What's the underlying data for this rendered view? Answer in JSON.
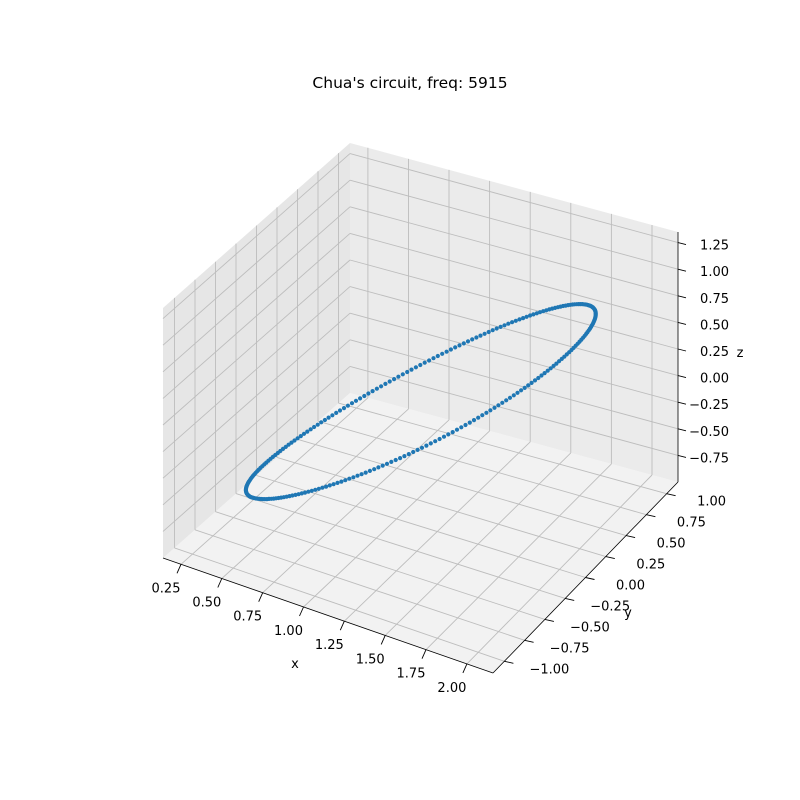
{
  "chart_data": {
    "type": "scatter",
    "projection": "3d",
    "title": "Chua's circuit, freq: 5915",
    "xlabel": "x",
    "ylabel": "y",
    "zlabel": "z",
    "grid": true,
    "xticks": [
      "0.25",
      "0.50",
      "0.75",
      "1.00",
      "1.25",
      "1.50",
      "1.75",
      "2.00"
    ],
    "yticks": [
      "−1.00",
      "−0.75",
      "−0.50",
      "−0.25",
      "0.00",
      "0.25",
      "0.50",
      "0.75",
      "1.00"
    ],
    "zticks": [
      "−0.75",
      "−0.50",
      "−0.25",
      "0.00",
      "0.25",
      "0.50",
      "0.75",
      "1.00",
      "1.25"
    ],
    "xlim": [
      0.14,
      2.16
    ],
    "ylim": [
      -1.14,
      1.14
    ],
    "zlim": [
      -1.0,
      1.35
    ],
    "series": [
      {
        "color": "#1f77b4",
        "marker": "point",
        "point_count": 250,
        "orbit": {
          "center": [
            1.15,
            0.0,
            0.15
          ],
          "x_amplitude": 0.95,
          "y_amplitude": 1.0,
          "z_amplitude": 1.0
        }
      }
    ]
  }
}
